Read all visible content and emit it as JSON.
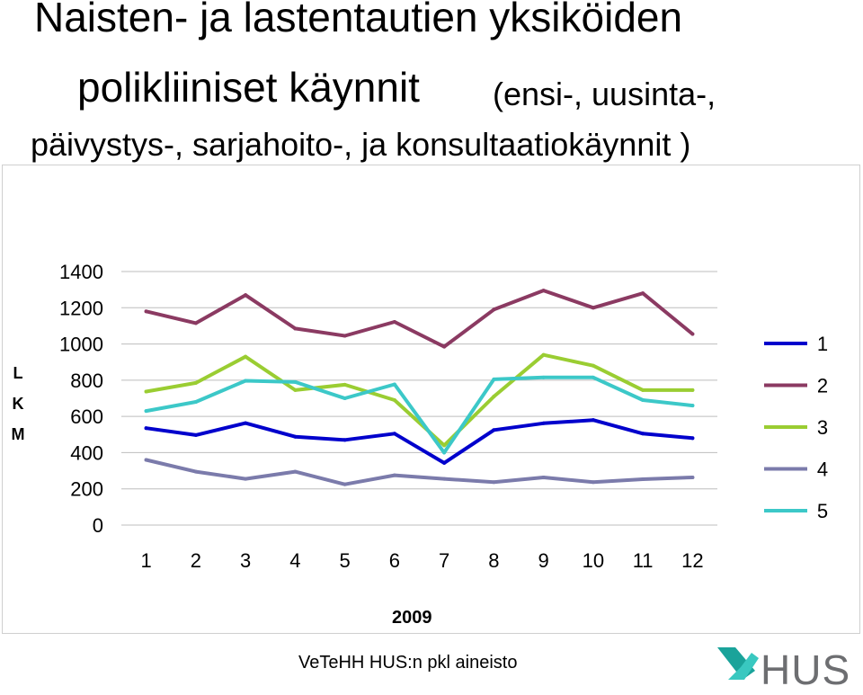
{
  "title": {
    "line1": "Naisten- ja lastentautien yksiköiden",
    "line2": "polikliiniset käynnit",
    "line2_sub": "(ensi-, uusinta-,",
    "line3": "päivystys-, sarjahoito-, ja konsultaatiokäynnit )"
  },
  "footer": {
    "source": "VeTeHH HUS:n pkl aineisto",
    "logo_text": "HUS"
  },
  "colors": {
    "logo_text": "#6d6e71",
    "logo_mark_dark": "#1aa39a",
    "logo_mark_light": "#39c8c0"
  },
  "chart_data": {
    "type": "line",
    "title": "",
    "xlabel": "2009",
    "ylabel": "L K M",
    "ylabel_letters": [
      "L",
      "K",
      "M"
    ],
    "categories": [
      "1",
      "2",
      "3",
      "4",
      "5",
      "6",
      "7",
      "8",
      "9",
      "10",
      "11",
      "12"
    ],
    "ylim": [
      0,
      1400
    ],
    "yticks": [
      0,
      200,
      400,
      600,
      800,
      1000,
      1200,
      1400
    ],
    "grid": true,
    "legend": "right",
    "series": [
      {
        "name": "1",
        "color": "#0000cc",
        "values": [
          535,
          497,
          563,
          488,
          470,
          505,
          343,
          525,
          562,
          580,
          505,
          480
        ]
      },
      {
        "name": "2",
        "color": "#8b3a62",
        "values": [
          1180,
          1115,
          1270,
          1085,
          1045,
          1122,
          985,
          1190,
          1295,
          1200,
          1280,
          1055
        ]
      },
      {
        "name": "3",
        "color": "#9acd32",
        "values": [
          737,
          785,
          930,
          745,
          775,
          690,
          440,
          710,
          940,
          880,
          745,
          745
        ]
      },
      {
        "name": "4",
        "color": "#7b7bab",
        "values": [
          360,
          295,
          255,
          295,
          225,
          275,
          255,
          237,
          263,
          237,
          253,
          263
        ]
      },
      {
        "name": "5",
        "color": "#3cc8c8",
        "values": [
          630,
          680,
          797,
          790,
          700,
          777,
          400,
          805,
          815,
          815,
          690,
          660
        ]
      }
    ]
  }
}
